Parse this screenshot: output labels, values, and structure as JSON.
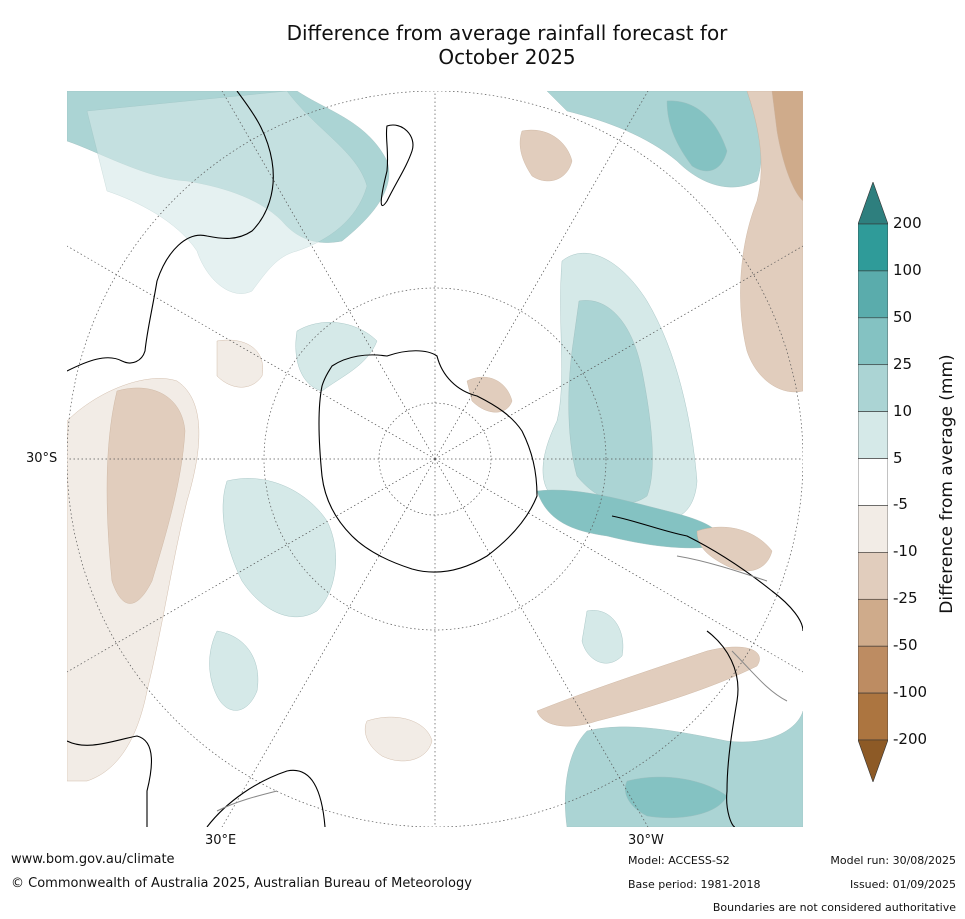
{
  "title": {
    "line1": "Difference from average rainfall forecast for",
    "line2": "October 2025"
  },
  "map": {
    "lat_label": "30°S",
    "lon_labels": [
      "30°E",
      "30°W"
    ],
    "colors": {
      "ocean_neutral": "#ffffff",
      "wet_light": "#d5e9e8",
      "wet_mid": "#abd4d4",
      "wet_strong": "#84c2c2",
      "dry_light": "#f2ece6",
      "dry_mid": "#e1cdbd",
      "dry_strong": "#cfab8b"
    }
  },
  "colorbar": {
    "title": "Difference from average (mm)",
    "ticks": [
      "200",
      "100",
      "50",
      "25",
      "10",
      "5",
      "-5",
      "-10",
      "-25",
      "-50",
      "-100",
      "-200"
    ],
    "colors": [
      "#2e7f7e",
      "#2f9b99",
      "#5aacac",
      "#84c2c2",
      "#abd4d4",
      "#d5e9e8",
      "#ffffff",
      "#f2ece6",
      "#e1cdbd",
      "#cfab8b",
      "#bd8c62",
      "#ac7540",
      "#8d5a26"
    ]
  },
  "footer": {
    "url": "www.bom.gov.au/climate",
    "copyright": "© Commonwealth of Australia 2025, Australian Bureau of Meteorology",
    "model": "Model: ACCESS-S2",
    "base_period": "Base period: 1981-2018",
    "model_run": "Model run: 30/08/2025",
    "issued": "Issued: 01/09/2025",
    "disclaimer": "Boundaries are not considered authoritative"
  }
}
